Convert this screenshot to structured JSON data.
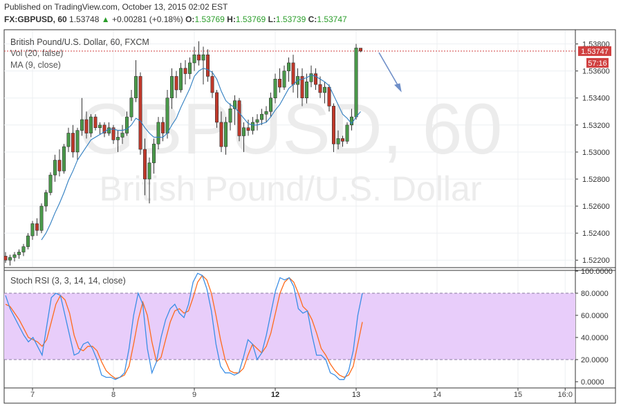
{
  "header": {
    "published": "Published on TradingView.com, October 13, 2015 02:02 EST",
    "symbol": "FX:GBPUSD, 60",
    "last": "1.53748",
    "change": "+0.00281 (+0.18%)",
    "o_label": "O:",
    "o": "1.53769",
    "h_label": "H:",
    "h": "1.53769",
    "l_label": "L:",
    "l": "1.53739",
    "c_label": "C:",
    "c": "1.53747"
  },
  "main_pane": {
    "title": "British Pound/U.S. Dollar, 60, FXCM",
    "vol_label": "Vol (20, false)",
    "ma_label": "MA (9, close)",
    "watermark_symbol": "GBPUSD, 60",
    "watermark_name": "British Pound/U.S. Dollar",
    "price_tag": "1.53747",
    "countdown_tag": "57:16"
  },
  "rsi_pane": {
    "title": "Stoch RSI (3, 3, 14, 14, close)"
  },
  "colors": {
    "up": "#4a9a4a",
    "down": "#c0392b",
    "ma": "#2f7ec1",
    "k_line": "#3a8ee6",
    "d_line": "#ff6a1a",
    "band": "#e8cdfa",
    "price_line": "#d04040",
    "arrow": "#6f8fc8"
  },
  "chart_data": [
    {
      "type": "candlestick",
      "title": "British Pound/U.S. Dollar, 60, FXCM",
      "y_axis": {
        "min": 1.5215,
        "max": 1.539,
        "ticks": [
          "1.53800",
          "1.53600",
          "1.53400",
          "1.53200",
          "1.53000",
          "1.52800",
          "1.52600",
          "1.52400",
          "1.52200"
        ]
      },
      "x_axis": {
        "ticks": [
          "7",
          "8",
          "9",
          "12",
          "13",
          "14",
          "15",
          "16:0"
        ]
      },
      "last_price": 1.53747,
      "candles": [
        [
          1.5223,
          1.5226,
          1.5218,
          1.522
        ],
        [
          1.522,
          1.5224,
          1.5216,
          1.5222
        ],
        [
          1.5222,
          1.5226,
          1.5219,
          1.5224
        ],
        [
          1.5224,
          1.5228,
          1.5221,
          1.5226
        ],
        [
          1.5226,
          1.5232,
          1.5223,
          1.523
        ],
        [
          1.523,
          1.524,
          1.5228,
          1.5238
        ],
        [
          1.5238,
          1.5249,
          1.5235,
          1.5247
        ],
        [
          1.5247,
          1.5251,
          1.5238,
          1.5242
        ],
        [
          1.5242,
          1.5262,
          1.524,
          1.526
        ],
        [
          1.526,
          1.5272,
          1.5256,
          1.527
        ],
        [
          1.527,
          1.5285,
          1.5268,
          1.5283
        ],
        [
          1.5283,
          1.5298,
          1.5278,
          1.5294
        ],
        [
          1.5294,
          1.5302,
          1.5282,
          1.5286
        ],
        [
          1.5286,
          1.5306,
          1.5284,
          1.5304
        ],
        [
          1.5304,
          1.5318,
          1.53,
          1.5314
        ],
        [
          1.5314,
          1.532,
          1.5296,
          1.53
        ],
        [
          1.53,
          1.5318,
          1.5294,
          1.5316
        ],
        [
          1.5316,
          1.534,
          1.5312,
          1.5324
        ],
        [
          1.5324,
          1.533,
          1.531,
          1.5314
        ],
        [
          1.5314,
          1.5328,
          1.5311,
          1.5326
        ],
        [
          1.5326,
          1.5328,
          1.5316,
          1.5318
        ],
        [
          1.5318,
          1.5322,
          1.5313,
          1.532
        ],
        [
          1.532,
          1.5322,
          1.5311,
          1.5314
        ],
        [
          1.5314,
          1.5322,
          1.5312,
          1.5318
        ],
        [
          1.5318,
          1.532,
          1.5306,
          1.5309
        ],
        [
          1.5309,
          1.5316,
          1.53,
          1.5311
        ],
        [
          1.5311,
          1.532,
          1.5306,
          1.5314
        ],
        [
          1.5314,
          1.533,
          1.5312,
          1.5326
        ],
        [
          1.5326,
          1.5346,
          1.5323,
          1.534
        ],
        [
          1.534,
          1.5368,
          1.5337,
          1.5356
        ],
        [
          1.5356,
          1.5359,
          1.5298,
          1.5302
        ],
        [
          1.5302,
          1.531,
          1.5268,
          1.528
        ],
        [
          1.528,
          1.5296,
          1.5262,
          1.5292
        ],
        [
          1.5292,
          1.531,
          1.5284,
          1.5306
        ],
        [
          1.5306,
          1.5326,
          1.5302,
          1.5322
        ],
        [
          1.5322,
          1.5326,
          1.5308,
          1.5314
        ],
        [
          1.5314,
          1.5346,
          1.531,
          1.534
        ],
        [
          1.534,
          1.5362,
          1.5332,
          1.5356
        ],
        [
          1.5356,
          1.536,
          1.534,
          1.5346
        ],
        [
          1.5346,
          1.5366,
          1.5344,
          1.5362
        ],
        [
          1.5362,
          1.5368,
          1.535,
          1.5358
        ],
        [
          1.5358,
          1.537,
          1.5354,
          1.5366
        ],
        [
          1.5366,
          1.5378,
          1.536,
          1.5372
        ],
        [
          1.5372,
          1.5382,
          1.5364,
          1.5368
        ],
        [
          1.5368,
          1.5378,
          1.535,
          1.5372
        ],
        [
          1.5372,
          1.5376,
          1.5352,
          1.5356
        ],
        [
          1.5356,
          1.536,
          1.534,
          1.5344
        ],
        [
          1.5344,
          1.5346,
          1.5318,
          1.5322
        ],
        [
          1.5322,
          1.533,
          1.53,
          1.5304
        ],
        [
          1.5304,
          1.5326,
          1.5298,
          1.5322
        ],
        [
          1.5322,
          1.5336,
          1.5316,
          1.5332
        ],
        [
          1.5332,
          1.5342,
          1.532,
          1.5338
        ],
        [
          1.5338,
          1.534,
          1.5308,
          1.5312
        ],
        [
          1.5312,
          1.5322,
          1.53,
          1.5318
        ],
        [
          1.5318,
          1.5324,
          1.5312,
          1.5316
        ],
        [
          1.5316,
          1.5326,
          1.5313,
          1.5322
        ],
        [
          1.5322,
          1.5328,
          1.5316,
          1.5324
        ],
        [
          1.5324,
          1.5332,
          1.532,
          1.5328
        ],
        [
          1.5328,
          1.5334,
          1.5322,
          1.533
        ],
        [
          1.533,
          1.5344,
          1.5326,
          1.534
        ],
        [
          1.534,
          1.5358,
          1.5336,
          1.5354
        ],
        [
          1.5354,
          1.5362,
          1.5344,
          1.5348
        ],
        [
          1.5348,
          1.5364,
          1.5346,
          1.536
        ],
        [
          1.536,
          1.537,
          1.5352,
          1.5366
        ],
        [
          1.5366,
          1.5372,
          1.5344,
          1.535
        ],
        [
          1.535,
          1.5362,
          1.534,
          1.5356
        ],
        [
          1.5356,
          1.5362,
          1.5334,
          1.534
        ],
        [
          1.534,
          1.5358,
          1.5336,
          1.5352
        ],
        [
          1.5352,
          1.5364,
          1.5348,
          1.5358
        ],
        [
          1.5358,
          1.5362,
          1.5346,
          1.535
        ],
        [
          1.535,
          1.5356,
          1.534,
          1.5344
        ],
        [
          1.5344,
          1.5352,
          1.5336,
          1.5348
        ],
        [
          1.5348,
          1.535,
          1.533,
          1.5334
        ],
        [
          1.5334,
          1.5336,
          1.53,
          1.5306
        ],
        [
          1.5306,
          1.5316,
          1.5302,
          1.531
        ],
        [
          1.531,
          1.5312,
          1.5304,
          1.5308
        ],
        [
          1.5308,
          1.5322,
          1.5306,
          1.532
        ],
        [
          1.532,
          1.5332,
          1.5316,
          1.5326
        ],
        [
          1.5326,
          1.538,
          1.5324,
          1.5377
        ],
        [
          1.53769,
          1.53769,
          1.53739,
          1.53747
        ]
      ],
      "ma": [
        null,
        null,
        null,
        null,
        null,
        null,
        null,
        null,
        1.5235,
        1.524,
        1.5247,
        1.5255,
        1.5262,
        1.527,
        1.5279,
        1.5286,
        1.5294,
        1.5299,
        1.5304,
        1.5309,
        1.5311,
        1.5313,
        1.5315,
        1.5317,
        1.5317,
        1.5316,
        1.5316,
        1.5317,
        1.532,
        1.5325,
        1.5323,
        1.5318,
        1.5314,
        1.5311,
        1.5311,
        1.5311,
        1.5314,
        1.532,
        1.5325,
        1.5333,
        1.534,
        1.5347,
        1.5356,
        1.536,
        1.5362,
        1.5361,
        1.5359,
        1.5354,
        1.5345,
        1.5338,
        1.5335,
        1.5333,
        1.5329,
        1.5325,
        1.5321,
        1.532,
        1.532,
        1.5321,
        1.5322,
        1.5326,
        1.5331,
        1.5335,
        1.5341,
        1.5347,
        1.535,
        1.5353,
        1.5354,
        1.5355,
        1.5357,
        1.5356,
        1.5354,
        1.5352,
        1.5349,
        1.5342,
        1.5335,
        1.5328,
        1.5325,
        1.5321,
        1.5326,
        1.533
      ]
    },
    {
      "type": "line",
      "title": "Stoch RSI (3, 3, 14, 14, close)",
      "y_axis": {
        "min": -5,
        "max": 100,
        "ticks": [
          "100.0000",
          "80.0000",
          "60.0000",
          "40.0000",
          "20.0000",
          "0.0000"
        ]
      },
      "band": [
        20,
        80
      ],
      "series": [
        {
          "values": [
            78,
            66,
            58,
            50,
            42,
            36,
            40,
            32,
            24,
            50,
            76,
            80,
            78,
            60,
            42,
            24,
            26,
            34,
            36,
            30,
            20,
            6,
            4,
            4,
            2,
            4,
            8,
            30,
            60,
            80,
            70,
            30,
            8,
            18,
            40,
            56,
            66,
            70,
            62,
            58,
            70,
            90,
            98,
            96,
            84,
            64,
            34,
            14,
            8,
            8,
            6,
            8,
            22,
            38,
            34,
            20,
            26,
            42,
            62,
            82,
            94,
            92,
            94,
            86,
            66,
            62,
            64,
            42,
            24,
            24,
            20,
            8,
            6,
            2,
            2,
            10,
            28,
            60,
            80
          ]
        },
        {
          "values": [
            70,
            68,
            62,
            56,
            48,
            40,
            38,
            36,
            32,
            38,
            54,
            70,
            78,
            74,
            62,
            42,
            30,
            28,
            32,
            32,
            28,
            18,
            10,
            6,
            3,
            4,
            6,
            14,
            34,
            56,
            72,
            60,
            36,
            18,
            22,
            38,
            54,
            64,
            66,
            62,
            64,
            76,
            90,
            96,
            92,
            80,
            60,
            38,
            20,
            10,
            8,
            8,
            12,
            24,
            34,
            30,
            26,
            32,
            44,
            62,
            80,
            90,
            94,
            90,
            80,
            68,
            64,
            56,
            44,
            30,
            24,
            16,
            10,
            6,
            4,
            6,
            14,
            34,
            54
          ]
        }
      ]
    }
  ]
}
